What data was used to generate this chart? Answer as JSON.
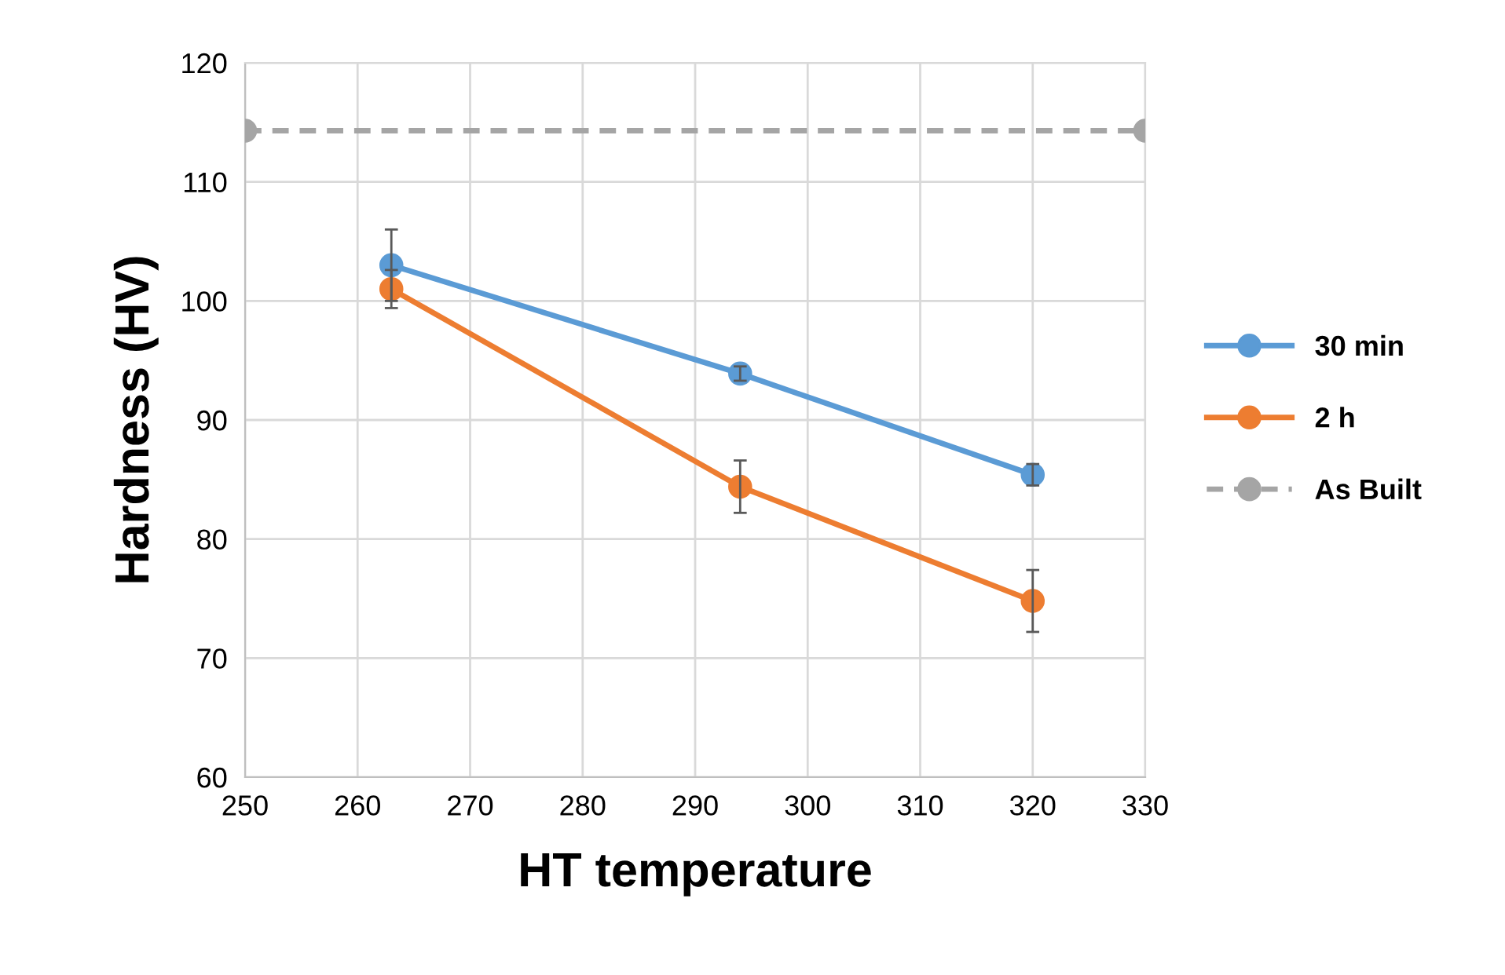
{
  "chart_data": {
    "type": "line",
    "xlabel": "HT temperature",
    "ylabel": "Hardness (HV)",
    "xlim": [
      250,
      330
    ],
    "xticks": [
      250,
      260,
      270,
      280,
      290,
      300,
      310,
      320,
      330
    ],
    "ylim": [
      60,
      120
    ],
    "yticks": [
      60,
      70,
      80,
      90,
      100,
      110,
      120
    ],
    "grid": true,
    "legend": "right",
    "marker": "circle",
    "series": [
      {
        "name": "30 min",
        "color": "#5b9bd5",
        "x": [
          263,
          294,
          320
        ],
        "values": [
          103.0,
          93.9,
          85.4
        ],
        "errors": [
          3.0,
          0.6,
          0.9
        ],
        "line_style": "solid"
      },
      {
        "name": "2 h",
        "color": "#ed7d31",
        "x": [
          263,
          294,
          320
        ],
        "values": [
          101.0,
          84.4,
          74.8
        ],
        "errors": [
          1.6,
          2.2,
          2.6
        ],
        "line_style": "solid"
      },
      {
        "name": "As Built",
        "color": "#a5a5a5",
        "x": [
          250,
          330
        ],
        "values": [
          114.3,
          114.3
        ],
        "line_style": "dashed"
      }
    ]
  }
}
